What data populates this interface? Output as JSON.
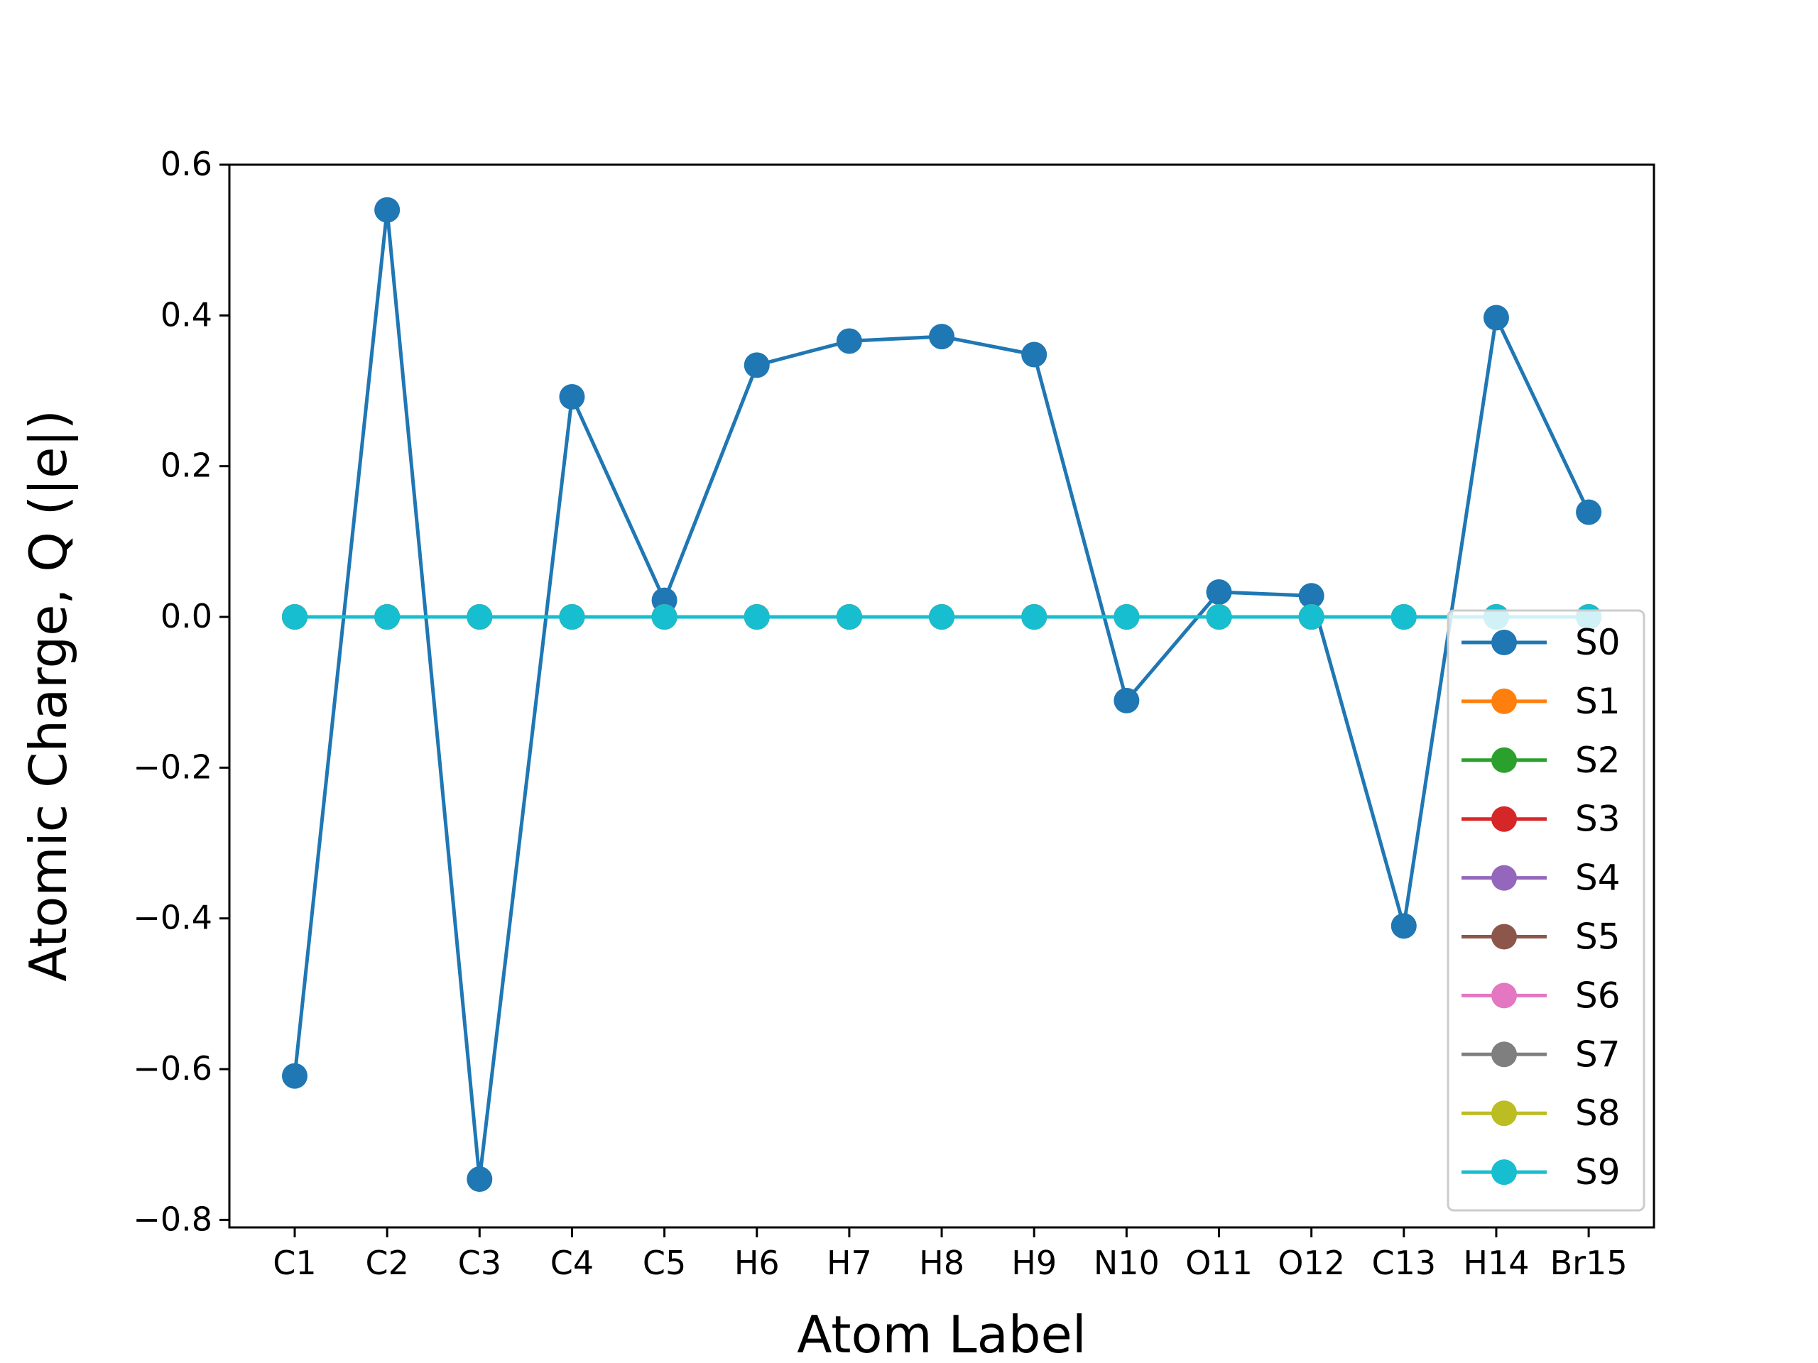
{
  "chart_data": {
    "type": "line",
    "title": "",
    "xlabel": "Atom Label",
    "ylabel": "Atomic Charge, Q (|e|)",
    "categories": [
      "C1",
      "C2",
      "C3",
      "C4",
      "C5",
      "H6",
      "H7",
      "H8",
      "H9",
      "N10",
      "O11",
      "O12",
      "C13",
      "H14",
      "Br15"
    ],
    "ylim": [
      -0.81,
      0.6
    ],
    "yticks": [
      0.6,
      0.4,
      0.2,
      0.0,
      -0.2,
      -0.4,
      -0.6,
      -0.8
    ],
    "ytick_labels": [
      "0.6",
      "0.4",
      "0.2",
      "0.0",
      "−0.2",
      "−0.4",
      "−0.6",
      "−0.8"
    ],
    "grid": false,
    "legend_position": "lower-right",
    "series": [
      {
        "name": "S0",
        "color": "#1f77b4",
        "values": [
          -0.609,
          0.54,
          -0.746,
          0.292,
          0.022,
          0.334,
          0.366,
          0.372,
          0.348,
          -0.111,
          0.033,
          0.028,
          -0.41,
          0.397,
          0.139
        ]
      },
      {
        "name": "S1",
        "color": "#ff7f0e",
        "values": [
          0,
          0,
          0,
          0,
          0,
          0,
          0,
          0,
          0,
          0,
          0,
          0,
          0,
          0,
          0
        ]
      },
      {
        "name": "S2",
        "color": "#2ca02c",
        "values": [
          0,
          0,
          0,
          0,
          0,
          0,
          0,
          0,
          0,
          0,
          0,
          0,
          0,
          0,
          0
        ]
      },
      {
        "name": "S3",
        "color": "#d62728",
        "values": [
          0,
          0,
          0,
          0,
          0,
          0,
          0,
          0,
          0,
          0,
          0,
          0,
          0,
          0,
          0
        ]
      },
      {
        "name": "S4",
        "color": "#9467bd",
        "values": [
          0,
          0,
          0,
          0,
          0,
          0,
          0,
          0,
          0,
          0,
          0,
          0,
          0,
          0,
          0
        ]
      },
      {
        "name": "S5",
        "color": "#8c564b",
        "values": [
          0,
          0,
          0,
          0,
          0,
          0,
          0,
          0,
          0,
          0,
          0,
          0,
          0,
          0,
          0
        ]
      },
      {
        "name": "S6",
        "color": "#e377c2",
        "values": [
          0,
          0,
          0,
          0,
          0,
          0,
          0,
          0,
          0,
          0,
          0,
          0,
          0,
          0,
          0
        ]
      },
      {
        "name": "S7",
        "color": "#7f7f7f",
        "values": [
          0,
          0,
          0,
          0,
          0,
          0,
          0,
          0,
          0,
          0,
          0,
          0,
          0,
          0,
          0
        ]
      },
      {
        "name": "S8",
        "color": "#bcbd22",
        "values": [
          0,
          0,
          0,
          0,
          0,
          0,
          0,
          0,
          0,
          0,
          0,
          0,
          0,
          0,
          0
        ]
      },
      {
        "name": "S9",
        "color": "#17becf",
        "values": [
          0,
          0,
          0,
          0,
          0,
          0,
          0,
          0,
          0,
          0,
          0,
          0,
          0,
          0,
          0
        ]
      }
    ]
  }
}
